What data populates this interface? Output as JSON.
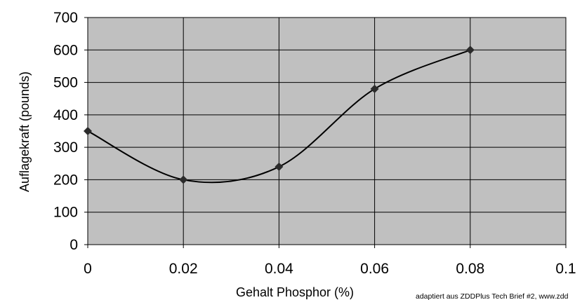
{
  "chart_data": {
    "type": "line",
    "title": "",
    "xlabel": "Gehalt Phosphor (%)",
    "ylabel": "Auflagekraft (pounds)",
    "xlim": [
      0,
      0.1
    ],
    "ylim": [
      0,
      700
    ],
    "x_ticks": [
      "0",
      "0.02",
      "0.04",
      "0.06",
      "0.08",
      "0.1"
    ],
    "y_ticks": [
      "0",
      "100",
      "200",
      "300",
      "400",
      "500",
      "600",
      "700"
    ],
    "grid": true,
    "plot_background": "#c0c0c0",
    "line_color": "#000000",
    "marker": "diamond",
    "smooth": true,
    "series": [
      {
        "x": [
          0,
          0.02,
          0.04,
          0.06,
          0.08
        ],
        "values": [
          350,
          200,
          240,
          480,
          600
        ]
      }
    ],
    "annotation": "adaptiert aus ZDDPlus Tech Brief #2, www.zdd"
  }
}
